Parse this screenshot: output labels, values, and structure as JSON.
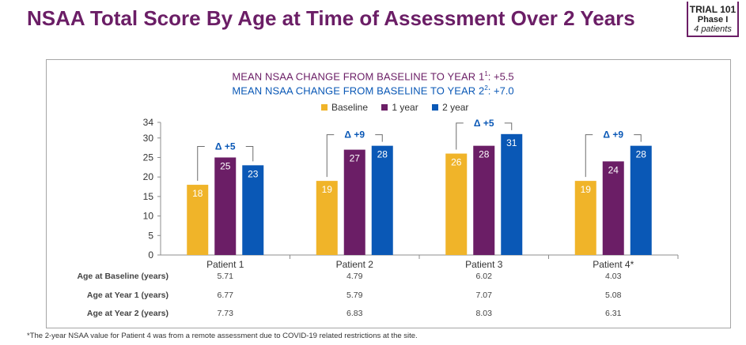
{
  "title": "NSAA Total Score By Age at Time of Assessment Over 2 Years",
  "badge": {
    "line1": "TRIAL 101",
    "line2": "Phase I",
    "line3": "4 patients"
  },
  "mean_year1": {
    "text": "MEAN NSAA CHANGE FROM BASELINE TO YEAR 1",
    "sup": "1",
    "value": ": +5.5"
  },
  "mean_year2": {
    "text": "MEAN NSAA CHANGE FROM BASELINE TO YEAR 2",
    "sup": "2",
    "value": ": +7.0"
  },
  "colors": {
    "baseline": "#f0b429",
    "year1": "#6b1e66",
    "year2": "#0a58b6",
    "delta": "#0a58b6"
  },
  "chart_data": {
    "type": "bar",
    "categories": [
      "Patient 1",
      "Patient 2",
      "Patient 3",
      "Patient 4*"
    ],
    "series": [
      {
        "name": "Baseline",
        "values": [
          18,
          19,
          26,
          19
        ]
      },
      {
        "name": "1 year",
        "values": [
          25,
          27,
          28,
          24
        ]
      },
      {
        "name": "2 year",
        "values": [
          23,
          28,
          31,
          28
        ]
      }
    ],
    "deltas": [
      "Δ +5",
      "Δ +9",
      "Δ +5",
      "Δ +9"
    ],
    "yticks": [
      "0",
      "5",
      "10",
      "15",
      "20",
      "25",
      "30",
      "34"
    ],
    "ylim": [
      0,
      34
    ],
    "legend_position": "top-center"
  },
  "age_table": {
    "rows": [
      {
        "label": "Age at Baseline (years)",
        "values": [
          "5.71",
          "4.79",
          "6.02",
          "4.03"
        ]
      },
      {
        "label": "Age at Year 1 (years)",
        "values": [
          "6.77",
          "5.79",
          "7.07",
          "5.08"
        ]
      },
      {
        "label": "Age at Year 2 (years)",
        "values": [
          "7.73",
          "6.83",
          "8.03",
          "6.31"
        ]
      }
    ]
  },
  "footnote": "*The 2-year NSAA value for Patient 4 was from a remote assessment due to COVID-19 related restrictions at the site."
}
